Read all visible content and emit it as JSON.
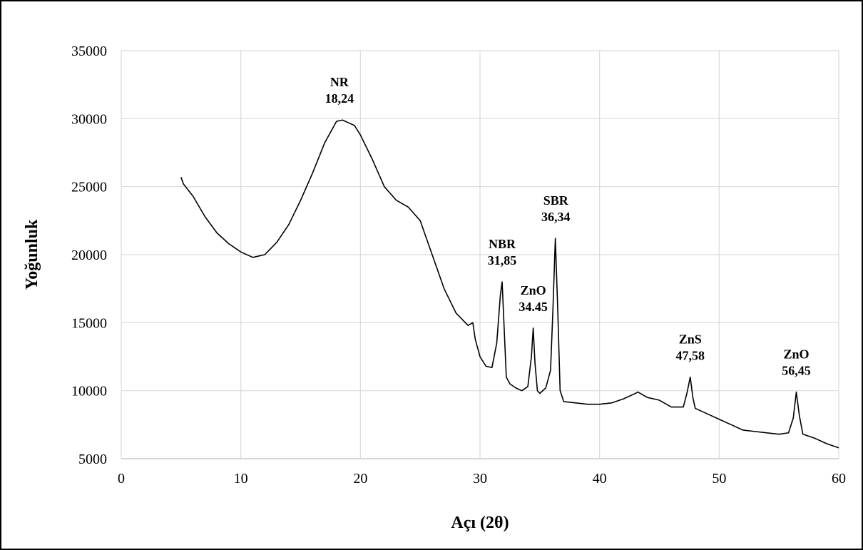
{
  "chart_data": {
    "type": "line",
    "xlabel": "Açı (2θ)",
    "ylabel": "Yoğunluk",
    "x": [
      5,
      5.2,
      6,
      7,
      8,
      9,
      10,
      11,
      12,
      13,
      14,
      15,
      16,
      17,
      18,
      18.5,
      19,
      19.5,
      20,
      21,
      22,
      23,
      24,
      25,
      26,
      27,
      28,
      29,
      29.4,
      29.6,
      30,
      30.5,
      31,
      31.4,
      31.7,
      31.85,
      32,
      32.2,
      32.5,
      33,
      33.5,
      34,
      34.3,
      34.45,
      34.6,
      34.8,
      35,
      35.5,
      35.9,
      36.1,
      36.3,
      36.5,
      36.7,
      37,
      38,
      39,
      40,
      41,
      42,
      43,
      43.2,
      44,
      45,
      46,
      47,
      47.3,
      47.58,
      47.8,
      48,
      49,
      50,
      51,
      52,
      53,
      54,
      55,
      55.8,
      56.2,
      56.45,
      56.7,
      57,
      58,
      59,
      60
    ],
    "series": [
      {
        "color": "#000000",
        "values": [
          25700,
          25200,
          24300,
          22800,
          21600,
          20800,
          20200,
          19800,
          20000,
          20900,
          22200,
          24000,
          26000,
          28200,
          29800,
          29900,
          29700,
          29500,
          28800,
          27000,
          25000,
          24000,
          23500,
          22500,
          20000,
          17500,
          15700,
          14800,
          15000,
          13800,
          12500,
          11800,
          11700,
          13500,
          17000,
          18000,
          15000,
          11000,
          10500,
          10200,
          10000,
          10300,
          12500,
          14600,
          12000,
          10000,
          9800,
          10200,
          11500,
          16000,
          21200,
          16000,
          10000,
          9200,
          9100,
          9000,
          9000,
          9100,
          9400,
          9800,
          9900,
          9500,
          9300,
          8800,
          8800,
          9800,
          11000,
          9500,
          8700,
          8300,
          7900,
          7500,
          7100,
          7000,
          6900,
          6800,
          6900,
          8000,
          9900,
          8200,
          6800,
          6500,
          6100,
          5800
        ]
      }
    ],
    "annotations": [
      {
        "label": "NR",
        "x": 18.24,
        "x_label": "18,24"
      },
      {
        "label": "NBR",
        "x": 31.85,
        "x_label": "31,85"
      },
      {
        "label": "ZnO",
        "x": 34.45,
        "x_label": "34.45"
      },
      {
        "label": "SBR",
        "x": 36.34,
        "x_label": "36,34"
      },
      {
        "label": "ZnS",
        "x": 47.58,
        "x_label": "47,58"
      },
      {
        "label": "ZnO",
        "x": 56.45,
        "x_label": "56,45"
      }
    ],
    "xlim": [
      0,
      60
    ],
    "ylim": [
      5000,
      35000
    ],
    "xticks": [
      0,
      10,
      20,
      30,
      40,
      50,
      60
    ],
    "yticks": [
      5000,
      10000,
      15000,
      20000,
      25000,
      30000,
      35000
    ],
    "grid": true
  }
}
